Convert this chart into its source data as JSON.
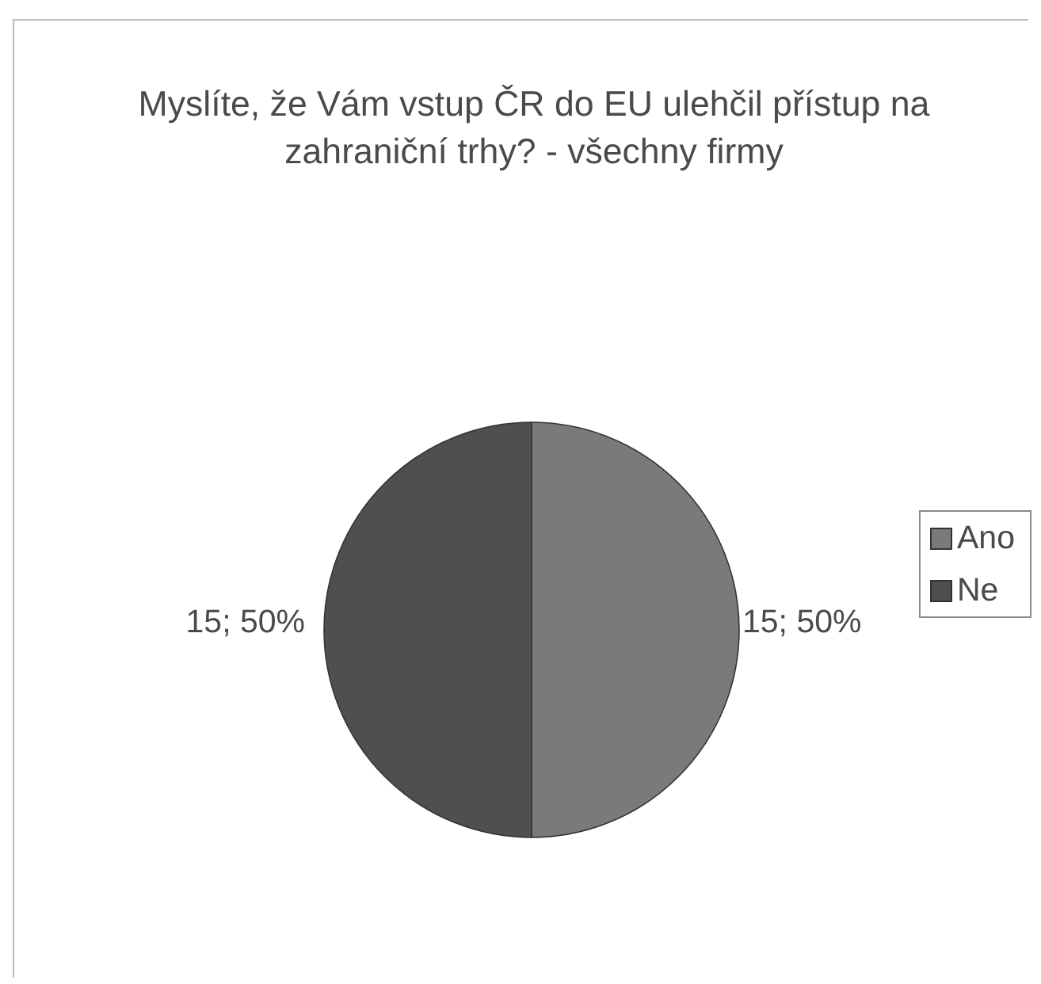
{
  "chart_data": {
    "type": "pie",
    "title": "Myslíte, že Vám vstup ČR do EU ulehčil přístup na zahraniční trhy? - všechny firmy",
    "categories": [
      "Ano",
      "Ne"
    ],
    "values": [
      15,
      15
    ],
    "colors": [
      "#7a7a7a",
      "#4f4f4f"
    ],
    "value_labels": [
      "15; 50%",
      "15; 50%"
    ],
    "legend": "right"
  }
}
